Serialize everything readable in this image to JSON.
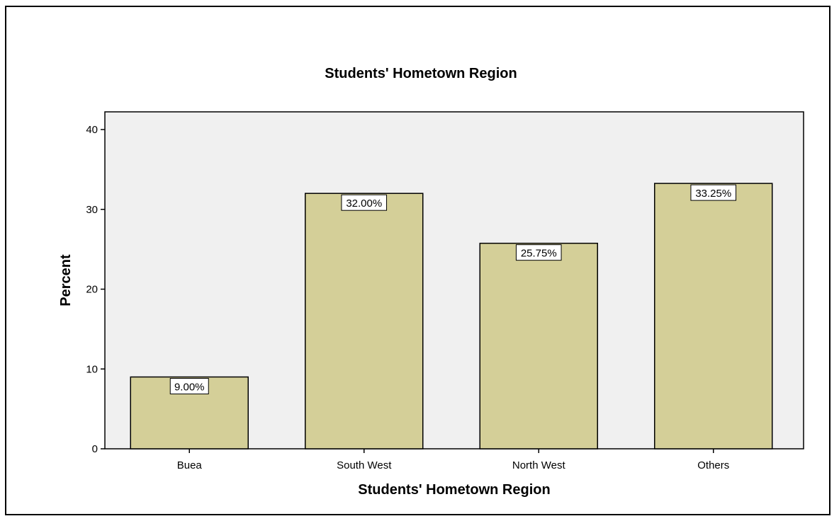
{
  "chart_data": {
    "type": "bar",
    "title": "Students' Hometown Region",
    "xlabel": "Students' Hometown Region",
    "ylabel": "Percent",
    "categories": [
      "Buea",
      "South West",
      "North West",
      "Others"
    ],
    "values": [
      9.0,
      32.0,
      25.75,
      33.25
    ],
    "data_labels": [
      "9.00%",
      "32.00%",
      "25.75%",
      "33.25%"
    ],
    "ylim": [
      0,
      40
    ],
    "yticks": [
      "0",
      "10",
      "20",
      "30",
      "40"
    ],
    "grid": false,
    "legend": "none",
    "colors": {
      "bar_fill": "#d4cf98",
      "plot_background": "#f0f0f0",
      "label_box": "#ffffff"
    }
  }
}
